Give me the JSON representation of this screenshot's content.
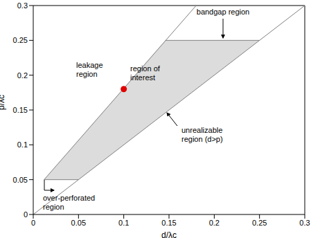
{
  "chart_data": {
    "type": "line",
    "x_label": "d/λc",
    "y_label": "p/λc",
    "xlim": [
      0,
      0.3
    ],
    "ylim": [
      0,
      0.3
    ],
    "xticks": [
      0,
      0.05,
      0.1,
      0.15,
      0.2,
      0.25,
      0.3
    ],
    "yticks": [
      0,
      0.05,
      0.1,
      0.15,
      0.2,
      0.25,
      0.3
    ],
    "region": {
      "x": [
        0.012,
        0.05,
        0.146,
        0.25
      ],
      "lower": [
        0.05,
        0.05,
        0.146,
        0.25
      ],
      "upper": [
        0.05,
        0.1066,
        0.25,
        0.25
      ],
      "color": "#dcdcdc"
    },
    "boundaries": [
      {
        "x": [
          0,
          0.3
        ],
        "y": [
          0,
          0.3
        ],
        "color": "#808080"
      },
      {
        "x": [
          0.012,
          0.18
        ],
        "y": [
          0.05,
          0.3
        ],
        "color": "#808080"
      },
      {
        "x": [
          0.146,
          0.25
        ],
        "y": [
          0.25,
          0.25
        ],
        "color": "#808080"
      },
      {
        "x": [
          0.012,
          0.05
        ],
        "y": [
          0.05,
          0.05
        ],
        "color": "#808080"
      }
    ],
    "point": {
      "x": 0.1,
      "y": 0.18,
      "color": "#e00000"
    },
    "annotations": [
      "bandgap region",
      "leakage region",
      "region of interest",
      "unrealizable region (d>p)",
      "over-perforated region"
    ]
  }
}
